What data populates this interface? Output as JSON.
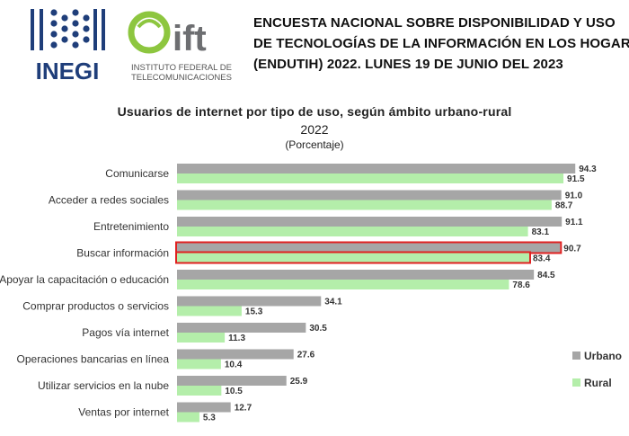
{
  "header": {
    "inegi_logo_text": "INEGI",
    "ift_logo_text": "ift",
    "ift_subtitle_line1": "INSTITUTO FEDERAL DE",
    "ift_subtitle_line2": "TELECOMUNICACIONES",
    "title_line1": "ENCUESTA NACIONAL SOBRE DISPONIBILIDAD Y USO",
    "title_line2": "DE TECNOLOGÍAS DE LA INFORMACIÓN EN LOS HOGARES",
    "title_line3": "(ENDUTIH) 2022. LUNES 19 DE JUNIO DEL 2023"
  },
  "colors": {
    "urbano": "#a6a6a6",
    "rural": "#b4eeaa",
    "highlight": "#e02020",
    "inegi_blue": "#1f3e7a",
    "ift_green": "#8dc63f"
  },
  "chart_data": {
    "type": "bar",
    "orientation": "horizontal",
    "title": "Usuarios de internet por tipo de uso, según ámbito urbano-rural",
    "subtitle": "2022",
    "note": "(Porcentaje)",
    "categories": [
      "Comunicarse",
      "Acceder a redes sociales",
      "Entretenimiento",
      "Buscar información",
      "Apoyar la capacitación o educación",
      "Comprar productos o servicios",
      "Pagos vía internet",
      "Operaciones bancarias en línea",
      "Utilizar servicios en la nube",
      "Ventas por internet"
    ],
    "series": [
      {
        "name": "Urbano",
        "values": [
          94.3,
          91.0,
          91.1,
          90.7,
          84.5,
          34.1,
          30.5,
          27.6,
          25.9,
          12.7
        ],
        "labels": [
          "94.3",
          "91.0",
          "91.1",
          "90.7",
          "84.5",
          "34.1",
          "30.5",
          "27.6",
          "25.9",
          "12.7"
        ]
      },
      {
        "name": "Rural",
        "values": [
          91.5,
          88.7,
          83.1,
          83.4,
          78.6,
          15.3,
          11.3,
          10.4,
          10.5,
          5.3
        ],
        "labels": [
          "91.5",
          "88.7",
          "83.1",
          "83.4",
          "78.6",
          "15.3",
          "11.3",
          "10.4",
          "10.5",
          "5.3"
        ]
      }
    ],
    "highlighted_category": "Buscar información",
    "xlim": [
      0,
      100
    ],
    "legend_position": "bottom-right"
  }
}
